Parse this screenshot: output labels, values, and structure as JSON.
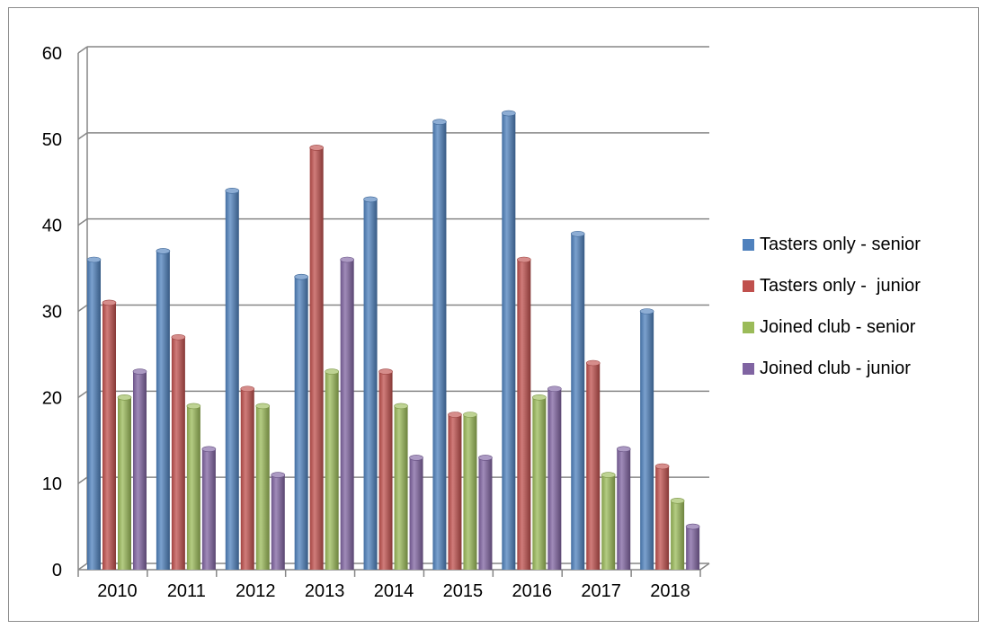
{
  "chart_data": {
    "type": "bar",
    "title": "",
    "xlabel": "",
    "ylabel": "",
    "categories": [
      "2010",
      "2011",
      "2012",
      "2013",
      "2014",
      "2015",
      "2016",
      "2017",
      "2018"
    ],
    "series": [
      {
        "name": "Tasters only - senior",
        "color": "#4f81bd",
        "values": [
          36,
          37,
          44,
          34,
          43,
          52,
          53,
          39,
          30
        ]
      },
      {
        "name": "Tasters only -  junior",
        "color": "#c0504d",
        "values": [
          31,
          27,
          21,
          49,
          23,
          18,
          36,
          24,
          12
        ]
      },
      {
        "name": "Joined club - senior",
        "color": "#9bbb59",
        "values": [
          20,
          19,
          19,
          23,
          19,
          18,
          20,
          11,
          8
        ]
      },
      {
        "name": "Joined club - junior",
        "color": "#8064a2",
        "values": [
          23,
          14,
          11,
          36,
          13,
          13,
          21,
          14,
          5
        ]
      }
    ],
    "ylim": [
      0,
      60
    ],
    "yticks": [
      "0",
      "10",
      "20",
      "30",
      "40",
      "50",
      "60"
    ],
    "grid": true,
    "legend_position": "right",
    "style": "3d-cylinder-bars"
  }
}
